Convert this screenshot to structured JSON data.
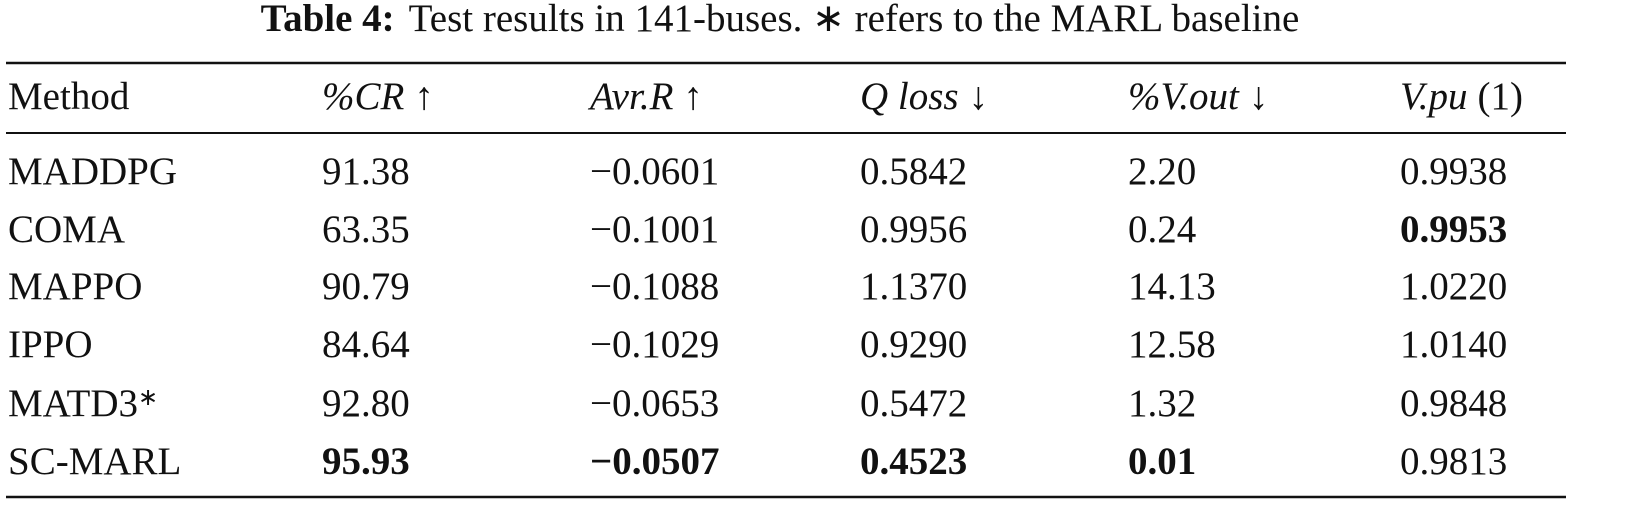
{
  "caption": {
    "label": "Table 4:",
    "text": "Test results in 141-buses. ∗ refers to the MARL baseline"
  },
  "table": {
    "header": [
      {
        "name": "Method"
      },
      {
        "name": "%CR",
        "mark": "↑"
      },
      {
        "name": "Avr.R",
        "mark": "↑"
      },
      {
        "name": "Q loss",
        "mark": "↓"
      },
      {
        "name": "%V.out",
        "mark": "↓"
      },
      {
        "name": "V.pu",
        "mark": "(1)"
      }
    ],
    "rows": [
      [
        {
          "text": "MADDPG"
        },
        {
          "text": "91.38"
        },
        {
          "text": "−0.0601"
        },
        {
          "text": "0.5842"
        },
        {
          "text": "2.20"
        },
        {
          "text": "0.9938"
        }
      ],
      [
        {
          "text": "COMA"
        },
        {
          "text": "63.35"
        },
        {
          "text": "−0.1001"
        },
        {
          "text": "0.9956"
        },
        {
          "text": "0.24"
        },
        {
          "text": "0.9953",
          "bold": true
        }
      ],
      [
        {
          "text": "MAPPO"
        },
        {
          "text": "90.79"
        },
        {
          "text": "−0.1088"
        },
        {
          "text": "1.1370"
        },
        {
          "text": "14.13"
        },
        {
          "text": "1.0220"
        }
      ],
      [
        {
          "text": "IPPO"
        },
        {
          "text": "84.64"
        },
        {
          "text": "−0.1029"
        },
        {
          "text": "0.9290"
        },
        {
          "text": "12.58"
        },
        {
          "text": "1.0140"
        }
      ],
      [
        {
          "text": "MATD3",
          "note": "∗"
        },
        {
          "text": "92.80"
        },
        {
          "text": "−0.0653"
        },
        {
          "text": "0.5472"
        },
        {
          "text": "1.32"
        },
        {
          "text": "0.9848"
        }
      ],
      [
        {
          "text": "SC-MARL"
        },
        {
          "text": "95.93",
          "bold": true
        },
        {
          "text": "−0.0507",
          "bold": true
        },
        {
          "text": "0.4523",
          "bold": true
        },
        {
          "text": "0.01",
          "bold": true
        },
        {
          "text": "0.9813"
        }
      ]
    ]
  }
}
